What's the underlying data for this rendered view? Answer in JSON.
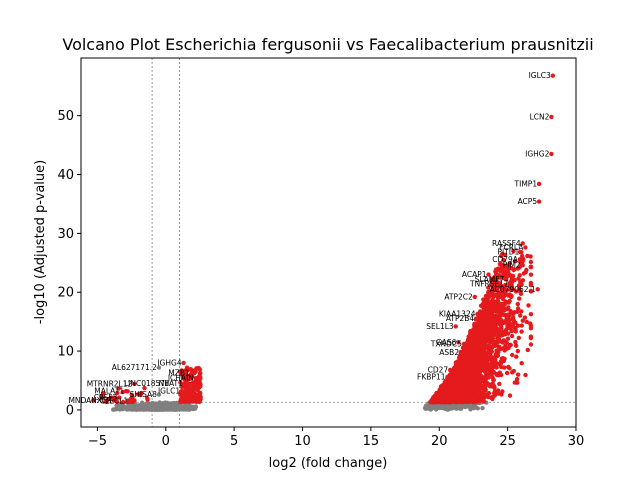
{
  "chart_data": {
    "type": "scatter",
    "title": "Volcano Plot Escherichia fergusonii vs Faecalibacterium prausnitzii",
    "xlabel": "log2 (fold change)",
    "ylabel": "-log10 (Adjusted p-value)",
    "xlim": [
      -6.2,
      30
    ],
    "ylim": [
      -2.9,
      59.8
    ],
    "xticks": [
      -5,
      0,
      5,
      10,
      15,
      20,
      25,
      30
    ],
    "yticks": [
      0,
      10,
      20,
      30,
      40,
      50
    ],
    "grid": false,
    "legend": "none",
    "thresholds": {
      "log2fc": [
        -1,
        1
      ],
      "neg_log10_padj": 1.3
    },
    "colors": {
      "significant": "#e41a1c",
      "nonsignificant": "#808080",
      "threshold_line": "#808080"
    },
    "labeled_points": [
      {
        "gene": "IGLC3",
        "x": 28.3,
        "y": 56.8
      },
      {
        "gene": "LCN2",
        "x": 28.2,
        "y": 49.8
      },
      {
        "gene": "IGHG2",
        "x": 28.2,
        "y": 43.5
      },
      {
        "gene": "TIMP1",
        "x": 27.3,
        "y": 38.4
      },
      {
        "gene": "ACP5",
        "x": 27.3,
        "y": 35.4
      },
      {
        "gene": "RASSF4",
        "x": 26.1,
        "y": 28.3
      },
      {
        "gene": "FCRLA",
        "x": 26.3,
        "y": 27.6
      },
      {
        "gene": "PITD1",
        "x": 26.0,
        "y": 26.8
      },
      {
        "gene": "CD79A",
        "x": 25.9,
        "y": 25.6
      },
      {
        "gene": "PIM2",
        "x": 26.1,
        "y": 24.6
      },
      {
        "gene": "ACAP1",
        "x": 23.6,
        "y": 23.0
      },
      {
        "gene": "SLAMF7",
        "x": 24.9,
        "y": 22.2
      },
      {
        "gene": "TNFRSF17",
        "x": 25.2,
        "y": 21.4
      },
      {
        "gene": "AC079062.1",
        "x": 27.2,
        "y": 20.5
      },
      {
        "gene": "ATP2C2",
        "x": 22.6,
        "y": 19.2
      },
      {
        "gene": "KIAA1324",
        "x": 22.8,
        "y": 16.3
      },
      {
        "gene": "SEL1L3",
        "x": 21.2,
        "y": 14.2
      },
      {
        "gene": "ATP2B4",
        "x": 22.7,
        "y": 15.5
      },
      {
        "gene": "TXNDC5",
        "x": 21.8,
        "y": 11.2
      },
      {
        "gene": "GAS6",
        "x": 21.4,
        "y": 11.5
      },
      {
        "gene": "ASB2",
        "x": 21.6,
        "y": 9.8
      },
      {
        "gene": "CD27",
        "x": 20.8,
        "y": 6.8
      },
      {
        "gene": "FKBP11",
        "x": 20.6,
        "y": 5.6
      },
      {
        "gene": "IGHG4",
        "x": 1.3,
        "y": 8.0
      },
      {
        "gene": "AL627171.2",
        "x": -0.5,
        "y": 7.2
      },
      {
        "gene": "MZB1",
        "x": 1.9,
        "y": 6.3
      },
      {
        "gene": "JCHAIN",
        "x": 2.2,
        "y": 5.4
      },
      {
        "gene": "NEAT1",
        "x": 1.4,
        "y": 4.5
      },
      {
        "gene": "MTRNR2L12",
        "x": -2.3,
        "y": 4.4
      },
      {
        "gene": "LINC01857",
        "x": 0.1,
        "y": 4.5
      },
      {
        "gene": "IGLC1",
        "x": 1.2,
        "y": 3.2
      },
      {
        "gene": "SHISA8",
        "x": -0.5,
        "y": 2.6
      },
      {
        "gene": "MALAT1",
        "x": -2.9,
        "y": 3.2
      },
      {
        "gene": "CPSF3",
        "x": -3.4,
        "y": 2.1
      },
      {
        "gene": "CLECL1",
        "x": -2.6,
        "y": 1.5
      },
      {
        "gene": "MNDA",
        "x": -5.3,
        "y": 1.6
      },
      {
        "gene": "NXCR",
        "x": -3.8,
        "y": 1.6
      }
    ]
  }
}
